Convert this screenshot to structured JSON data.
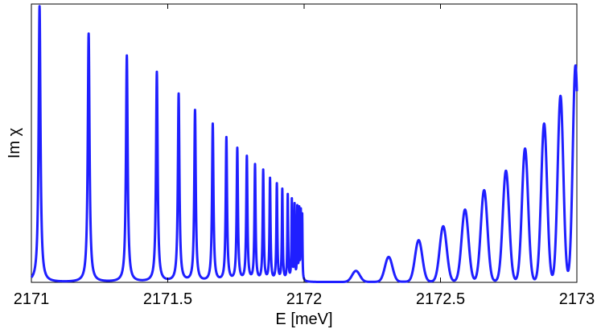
{
  "chart_data": {
    "type": "line",
    "title": "",
    "xlabel": "E [meV]",
    "ylabel": "Im χ",
    "xlim": [
      2171,
      2173
    ],
    "ylim": [
      0,
      1
    ],
    "xticks": [
      "2171",
      "2171.5",
      "2172",
      "2172.5",
      "2173"
    ],
    "yticks": [],
    "grid": false,
    "line_color": "#1f1fff",
    "series": [
      {
        "x_peaks_below_gap": [
          2171.03,
          2171.21,
          2171.35,
          2171.46,
          2171.54,
          2171.6,
          2171.665,
          2171.715,
          2171.755,
          2171.79,
          2171.82,
          2171.85,
          2171.875,
          2171.9,
          2171.92,
          2171.94,
          2171.955,
          2171.965,
          2171.975,
          2171.982,
          2171.988,
          2171.993
        ],
        "y_peaks_below_gap": [
          1.0,
          0.9,
          0.82,
          0.76,
          0.68,
          0.62,
          0.57,
          0.52,
          0.48,
          0.45,
          0.42,
          0.4,
          0.37,
          0.35,
          0.33,
          0.31,
          0.29,
          0.27,
          0.26,
          0.25,
          0.24,
          0.23
        ],
        "x_peaks_above_gap": [
          2172.19,
          2172.31,
          2172.42,
          2172.51,
          2172.59,
          2172.66,
          2172.74,
          2172.81,
          2172.88,
          2172.94,
          2172.995
        ],
        "y_peaks_above_gap": [
          0.04,
          0.09,
          0.15,
          0.2,
          0.26,
          0.33,
          0.4,
          0.48,
          0.57,
          0.67,
          0.78
        ]
      }
    ]
  }
}
